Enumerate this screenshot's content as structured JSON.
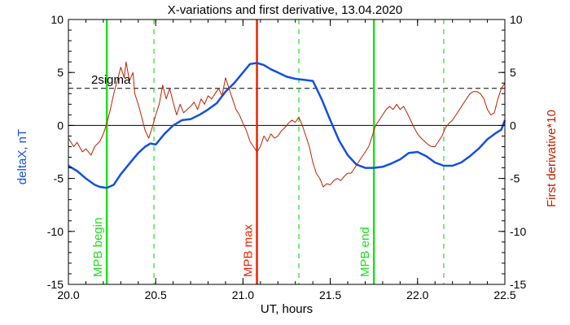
{
  "chart_data": {
    "type": "line",
    "title": "X-variations and first derivative, 13.04.2020",
    "xlabel": "UT, hours",
    "ylabel_left": "deltaX, nT",
    "ylabel_right": "First derivative*10",
    "xlim": [
      20.0,
      22.5
    ],
    "ylim_left": [
      -15,
      10
    ],
    "ylim_right": [
      -15,
      10
    ],
    "x_ticks": [
      20.0,
      20.5,
      21.0,
      21.5,
      22.0,
      22.5
    ],
    "x_tick_labels": [
      "20.0",
      "20.5",
      "21.0",
      "21.5",
      "22.0",
      "22.5"
    ],
    "y_ticks_left": [
      -15,
      -10,
      -5,
      0,
      5,
      10
    ],
    "y_tick_labels_left": [
      "-15",
      "-10",
      "-5",
      "0",
      "5",
      "10"
    ],
    "y_ticks_right": [
      -15,
      -10,
      -5,
      0,
      5,
      10
    ],
    "y_tick_labels_right": [
      "-15",
      "-10",
      "-5",
      "0",
      "5",
      "10"
    ],
    "grid": false,
    "colors": {
      "deltaX": "#1450e0",
      "derivative": "#c02000",
      "mpb_lines": "#22dd22",
      "max_line": "#ee2200",
      "axes": "#000000"
    },
    "threshold": {
      "label": "2sigma",
      "y": 3.5
    },
    "zero_line_y": 0,
    "vertical_markers": [
      {
        "x": 20.22,
        "label": "MPB begin",
        "style": "solid",
        "color": "#22dd22"
      },
      {
        "x": 20.49,
        "label": "",
        "style": "dashed",
        "color": "#22dd22"
      },
      {
        "x": 21.08,
        "label": "MPB max",
        "style": "solid",
        "color": "#ee2200"
      },
      {
        "x": 21.32,
        "label": "",
        "style": "dashed",
        "color": "#22dd22"
      },
      {
        "x": 21.75,
        "label": "MPB end",
        "style": "solid",
        "color": "#22dd22"
      },
      {
        "x": 22.15,
        "label": "",
        "style": "dashed",
        "color": "#22dd22"
      }
    ],
    "series": [
      {
        "key": "deltaX",
        "axis": "left",
        "x": [
          20.0,
          20.05,
          20.1,
          20.15,
          20.18,
          20.22,
          20.26,
          20.3,
          20.35,
          20.4,
          20.44,
          20.47,
          20.5,
          20.55,
          20.6,
          20.65,
          20.7,
          20.75,
          20.8,
          20.85,
          20.9,
          20.95,
          21.0,
          21.04,
          21.08,
          21.12,
          21.16,
          21.2,
          21.25,
          21.3,
          21.35,
          21.4,
          21.45,
          21.5,
          21.55,
          21.6,
          21.65,
          21.7,
          21.75,
          21.8,
          21.85,
          21.9,
          21.95,
          22.0,
          22.05,
          22.1,
          22.15,
          22.2,
          22.25,
          22.3,
          22.35,
          22.4,
          22.45,
          22.48,
          22.5
        ],
        "y": [
          -3.8,
          -4.3,
          -5.0,
          -5.6,
          -5.8,
          -5.9,
          -5.6,
          -4.6,
          -3.6,
          -2.6,
          -2.0,
          -1.7,
          -1.8,
          -0.8,
          0.0,
          0.5,
          0.6,
          1.0,
          1.5,
          2.1,
          3.2,
          4.0,
          5.0,
          5.8,
          5.9,
          5.7,
          5.3,
          5.0,
          4.6,
          4.4,
          4.3,
          4.2,
          2.5,
          0.5,
          -1.4,
          -2.8,
          -3.7,
          -4.0,
          -4.0,
          -3.9,
          -3.6,
          -3.2,
          -2.6,
          -2.5,
          -2.9,
          -3.5,
          -3.8,
          -3.8,
          -3.5,
          -2.9,
          -2.2,
          -1.3,
          -0.7,
          -0.4,
          0.5
        ]
      },
      {
        "key": "derivative",
        "axis": "right",
        "x": [
          20.0,
          20.03,
          20.05,
          20.08,
          20.1,
          20.13,
          20.15,
          20.18,
          20.2,
          20.22,
          20.24,
          20.26,
          20.28,
          20.3,
          20.32,
          20.33,
          20.35,
          20.37,
          20.38,
          20.4,
          20.42,
          20.44,
          20.46,
          20.48,
          20.5,
          20.52,
          20.54,
          20.56,
          20.58,
          20.6,
          20.62,
          20.64,
          20.66,
          20.68,
          20.7,
          20.72,
          20.74,
          20.76,
          20.78,
          20.8,
          20.82,
          20.84,
          20.86,
          20.88,
          20.9,
          20.92,
          20.94,
          20.96,
          20.98,
          21.0,
          21.02,
          21.04,
          21.06,
          21.08,
          21.1,
          21.12,
          21.14,
          21.16,
          21.18,
          21.2,
          21.22,
          21.24,
          21.26,
          21.28,
          21.3,
          21.32,
          21.34,
          21.36,
          21.38,
          21.4,
          21.42,
          21.44,
          21.46,
          21.48,
          21.5,
          21.52,
          21.54,
          21.56,
          21.58,
          21.6,
          21.62,
          21.64,
          21.66,
          21.68,
          21.7,
          21.72,
          21.74,
          21.76,
          21.78,
          21.8,
          21.82,
          21.84,
          21.86,
          21.88,
          21.9,
          21.92,
          21.94,
          21.96,
          21.98,
          22.0,
          22.02,
          22.04,
          22.06,
          22.08,
          22.1,
          22.12,
          22.14,
          22.16,
          22.18,
          22.2,
          22.22,
          22.24,
          22.26,
          22.28,
          22.3,
          22.32,
          22.34,
          22.36,
          22.38,
          22.4,
          22.42,
          22.44,
          22.46,
          22.48,
          22.5
        ],
        "y": [
          -1.2,
          -2.0,
          -1.6,
          -2.5,
          -2.2,
          -2.8,
          -2.0,
          -1.5,
          -0.8,
          0.2,
          1.5,
          3.0,
          4.2,
          5.5,
          4.5,
          6.0,
          4.2,
          5.0,
          3.0,
          2.0,
          0.8,
          -0.5,
          -1.2,
          -0.2,
          1.0,
          2.0,
          3.8,
          2.5,
          3.5,
          2.2,
          1.0,
          2.0,
          1.2,
          1.5,
          1.8,
          2.2,
          1.5,
          2.5,
          2.0,
          2.8,
          2.5,
          3.0,
          3.5,
          2.8,
          4.5,
          3.5,
          2.5,
          1.5,
          1.0,
          0.2,
          -0.5,
          -1.5,
          -2.0,
          -2.5,
          -2.0,
          -1.0,
          -1.5,
          -0.8,
          -1.2,
          -1.0,
          -0.5,
          -0.2,
          0.2,
          0.5,
          0.3,
          0.8,
          0.0,
          -1.0,
          -2.0,
          -3.5,
          -4.5,
          -5.0,
          -5.8,
          -5.5,
          -5.6,
          -5.2,
          -5.0,
          -5.2,
          -4.8,
          -4.5,
          -4.5,
          -4.0,
          -3.5,
          -3.0,
          -2.5,
          -2.0,
          -1.0,
          0.0,
          0.5,
          1.0,
          1.5,
          1.8,
          1.5,
          2.0,
          1.5,
          1.8,
          1.2,
          0.5,
          -0.2,
          -0.8,
          -1.2,
          -1.5,
          -1.8,
          -2.0,
          -2.0,
          -1.5,
          -1.0,
          -0.2,
          0.2,
          0.5,
          1.0,
          1.5,
          2.0,
          2.5,
          3.0,
          3.2,
          3.2,
          3.0,
          2.5,
          1.5,
          1.0,
          1.2,
          2.5,
          3.5,
          4.0
        ]
      }
    ]
  }
}
